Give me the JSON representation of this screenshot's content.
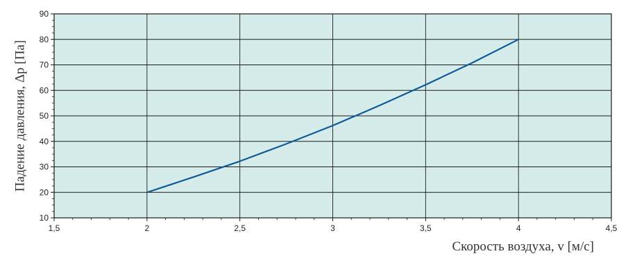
{
  "chart_data": {
    "type": "line",
    "title": "",
    "xlabel": "Скорость воздуха, v [м/с]",
    "ylabel": "Падение давления, Δp [Па]",
    "xlim": [
      1.5,
      4.5
    ],
    "ylim": [
      10,
      90
    ],
    "x_ticks": [
      1.5,
      2,
      2.5,
      3,
      3.5,
      4,
      4.5
    ],
    "x_tick_labels": [
      "1,5",
      "2",
      "2,5",
      "3",
      "3,5",
      "4",
      "4,5"
    ],
    "y_ticks": [
      10,
      20,
      30,
      40,
      50,
      60,
      70,
      80,
      90
    ],
    "y_tick_labels": [
      "10",
      "20",
      "30",
      "40",
      "50",
      "60",
      "70",
      "80",
      "90"
    ],
    "grid": true,
    "colors": {
      "plot_background": "#d6eceb",
      "grid": "#1a1a1a",
      "line": "#0e5a99",
      "axis": "#1a1a1a"
    },
    "series": [
      {
        "x": [
          2.0,
          2.25,
          2.5,
          2.75,
          3.0,
          3.25,
          3.5,
          3.75,
          4.0
        ],
        "values": [
          20,
          26,
          32.2,
          39.0,
          46.2,
          54.0,
          62.2,
          70.8,
          80
        ]
      }
    ]
  }
}
